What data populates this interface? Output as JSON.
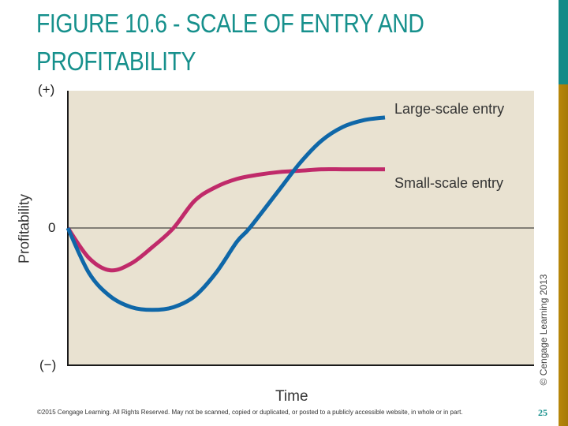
{
  "slide": {
    "title_line1": "FIGURE 10.6 - SCALE OF ENTRY AND",
    "title_line2": "PROFITABILITY",
    "page_number": "25",
    "footer": "©2015 Cengage Learning. All Rights Reserved. May not be scanned, copied or duplicated, or posted to a publicly accessible website, in whole or in part.",
    "credit": "© Cengage Learning 2013",
    "colors": {
      "title": "#16908c",
      "accent_bar_top": "#138a87",
      "accent_bar_bottom": "#b8870a",
      "plot_background": "#e9e2d1"
    }
  },
  "chart_data": {
    "type": "line",
    "title": "Scale of Entry and Profitability",
    "xlabel": "Time",
    "ylabel": "Profitability",
    "y_tick_labels": [
      "(+)",
      "0",
      "(−)"
    ],
    "x_range": [
      0,
      100
    ],
    "y_range": [
      -100,
      100
    ],
    "grid": false,
    "zero_line": true,
    "legend_position": "inline-right",
    "series": [
      {
        "name": "Large-scale entry",
        "color": "#0f67a8",
        "x": [
          0,
          5,
          10,
          15,
          20,
          25,
          30,
          35,
          40,
          43,
          50,
          55,
          60,
          65,
          70,
          75
        ],
        "y": [
          0,
          -33,
          -50,
          -58,
          -60,
          -58,
          -50,
          -33,
          -10,
          0,
          28,
          48,
          64,
          74,
          79,
          81
        ]
      },
      {
        "name": "Small-scale entry",
        "color": "#c02a6a",
        "x": [
          0,
          5,
          10,
          15,
          20,
          25,
          30,
          35,
          40,
          45,
          50,
          55,
          60,
          65,
          70,
          75
        ],
        "y": [
          0,
          -22,
          -31,
          -26,
          -14,
          0,
          20,
          30,
          36,
          39,
          41,
          42,
          43,
          43,
          43,
          43
        ]
      }
    ]
  }
}
